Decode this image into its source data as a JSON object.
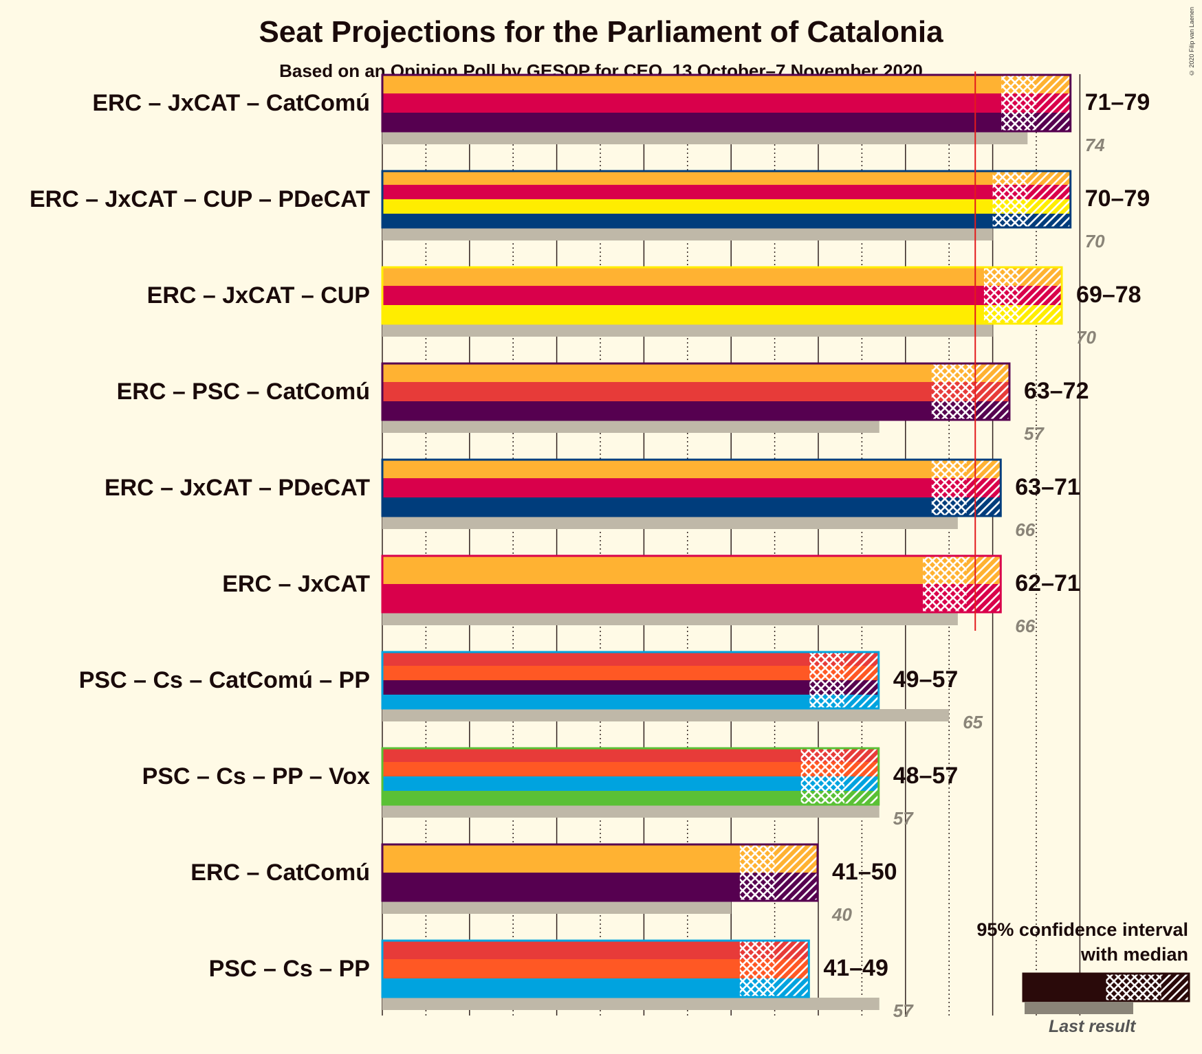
{
  "title": "Seat Projections for the Parliament of Catalonia",
  "subtitle": "Based on an Opinion Poll by GESOP for CEO, 13 October–7 November 2020",
  "copyright": "© 2020 Filip van Laenen",
  "legend": {
    "ci_line1": "95% confidence interval",
    "ci_line2": "with median",
    "last_result": "Last result"
  },
  "colors": {
    "ERC": "#FFB232",
    "JxCAT": "#D9004B",
    "CatComu": "#560050",
    "CUP": "#FFED00",
    "PDeCAT": "#003D7C",
    "PSC": "#E73B39",
    "Cs": "#FF5824",
    "PP": "#00A3DF",
    "Vox": "#5AC035",
    "majority_line": "#E31A1C",
    "last_result_bar": "#BFB8A8",
    "background": "#FFFAE6"
  },
  "chart_data": {
    "type": "bar",
    "orientation": "horizontal",
    "majority": 68,
    "xlim": [
      0,
      80
    ],
    "grid": "dotted vertical every 5 seats, solid every 10",
    "coalitions": [
      {
        "label": "ERC – JxCAT – CatComú",
        "parties": [
          "ERC",
          "JxCAT",
          "CatComu"
        ],
        "low": 71,
        "median": 75,
        "high": 79,
        "range_label": "71–79",
        "last": 74,
        "last_label": "74"
      },
      {
        "label": "ERC – JxCAT – CUP – PDeCAT",
        "parties": [
          "ERC",
          "JxCAT",
          "CUP",
          "PDeCAT"
        ],
        "low": 70,
        "median": 74,
        "high": 79,
        "range_label": "70–79",
        "last": 70,
        "last_label": "70"
      },
      {
        "label": "ERC – JxCAT – CUP",
        "parties": [
          "ERC",
          "JxCAT",
          "CUP"
        ],
        "low": 69,
        "median": 73,
        "high": 78,
        "range_label": "69–78",
        "last": 70,
        "last_label": "70"
      },
      {
        "label": "ERC – PSC – CatComú",
        "parties": [
          "ERC",
          "PSC",
          "CatComu"
        ],
        "low": 63,
        "median": 68,
        "high": 72,
        "range_label": "63–72",
        "last": 57,
        "last_label": "57"
      },
      {
        "label": "ERC – JxCAT – PDeCAT",
        "parties": [
          "ERC",
          "JxCAT",
          "PDeCAT"
        ],
        "low": 63,
        "median": 67,
        "high": 71,
        "range_label": "63–71",
        "last": 66,
        "last_label": "66"
      },
      {
        "label": "ERC – JxCAT",
        "parties": [
          "ERC",
          "JxCAT"
        ],
        "low": 62,
        "median": 67,
        "high": 71,
        "range_label": "62–71",
        "last": 66,
        "last_label": "66"
      },
      {
        "label": "PSC – Cs – CatComú – PP",
        "parties": [
          "PSC",
          "Cs",
          "CatComu",
          "PP"
        ],
        "low": 49,
        "median": 53,
        "high": 57,
        "range_label": "49–57",
        "last": 65,
        "last_label": "65"
      },
      {
        "label": "PSC – Cs – PP – Vox",
        "parties": [
          "PSC",
          "Cs",
          "PP",
          "Vox"
        ],
        "low": 48,
        "median": 53,
        "high": 57,
        "range_label": "48–57",
        "last": 57,
        "last_label": "57"
      },
      {
        "label": "ERC – CatComú",
        "parties": [
          "ERC",
          "CatComu"
        ],
        "low": 41,
        "median": 45,
        "high": 50,
        "range_label": "41–50",
        "last": 40,
        "last_label": "40"
      },
      {
        "label": "PSC – Cs – PP",
        "parties": [
          "PSC",
          "Cs",
          "PP"
        ],
        "low": 41,
        "median": 45,
        "high": 49,
        "range_label": "41–49",
        "last": 57,
        "last_label": "57"
      }
    ]
  }
}
